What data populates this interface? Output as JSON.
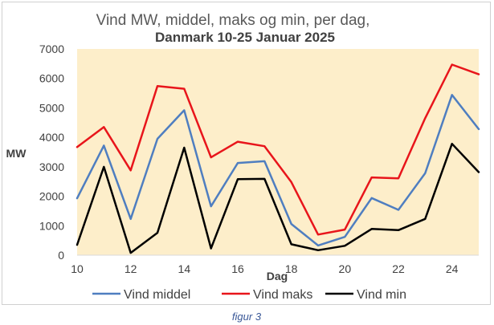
{
  "chart_data": {
    "type": "line",
    "title_line1": "Vind MW, middel, maks  og min, per dag,",
    "title_line2": "Danmark 10-25  Januar 2025",
    "xlabel": "Dag",
    "ylabel": "MW",
    "x": [
      10,
      11,
      12,
      13,
      14,
      15,
      16,
      17,
      18,
      19,
      20,
      21,
      22,
      23,
      24,
      25
    ],
    "x_tick_labels": [
      "10",
      "12",
      "14",
      "16",
      "18",
      "20",
      "22",
      "24"
    ],
    "x_tick_values": [
      10,
      12,
      14,
      16,
      18,
      20,
      22,
      24
    ],
    "ylim": [
      0,
      7000
    ],
    "xlim": [
      10,
      25
    ],
    "y_tick_values": [
      0,
      1000,
      2000,
      3000,
      4000,
      5000,
      6000,
      7000
    ],
    "grid": false,
    "plot_background": "#fdeeca",
    "legend_position": "bottom",
    "series": [
      {
        "name": "Vind middel",
        "color": "#4f7ec0",
        "values": [
          1930,
          3720,
          1230,
          3950,
          4920,
          1660,
          3130,
          3190,
          1060,
          330,
          620,
          1940,
          1540,
          2780,
          5440,
          4280
        ]
      },
      {
        "name": "Vind maks",
        "color": "#e8151b",
        "values": [
          3670,
          4350,
          2880,
          5740,
          5650,
          3320,
          3850,
          3700,
          2480,
          700,
          870,
          2640,
          2610,
          4650,
          6470,
          6140
        ]
      },
      {
        "name": "Vind min",
        "color": "#000000",
        "values": [
          350,
          3000,
          80,
          760,
          3650,
          230,
          2580,
          2590,
          370,
          170,
          320,
          890,
          850,
          1230,
          3780,
          2820
        ]
      }
    ]
  },
  "caption": "figur 3"
}
